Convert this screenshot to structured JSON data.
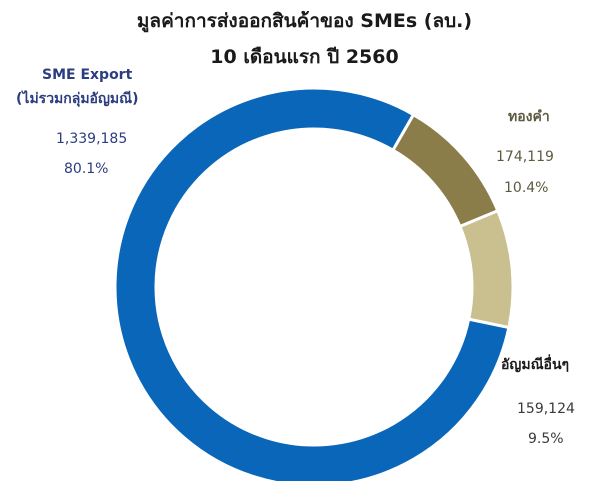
{
  "chart_data": {
    "type": "pie",
    "title": "มูลค่าการส่งออกสินค้าของ SMEs (ลบ.)",
    "subtitle": "10 เดือนแรก ปี 2560",
    "slices": [
      {
        "name": "SME Export",
        "name_line2": "(ไม่รวมกลุ่มอัญมณี)",
        "value": 1339185,
        "value_label": "1,339,185",
        "percent_label": "80.1%",
        "color": "#0a66b8",
        "text_color": "#2c3e80"
      },
      {
        "name": "ทองคำ",
        "name_line2": "",
        "value": 174119,
        "value_label": "174,119",
        "percent_label": "10.4%",
        "color": "#8b7d4a",
        "text_color": "#5e5a40"
      },
      {
        "name": "อัญมณีอื่นๆ",
        "name_line2": "",
        "value": 159124,
        "value_label": "159,124",
        "percent_label": "9.5%",
        "color": "#c9bf8f",
        "text_color": "#3a3a3a"
      }
    ]
  }
}
